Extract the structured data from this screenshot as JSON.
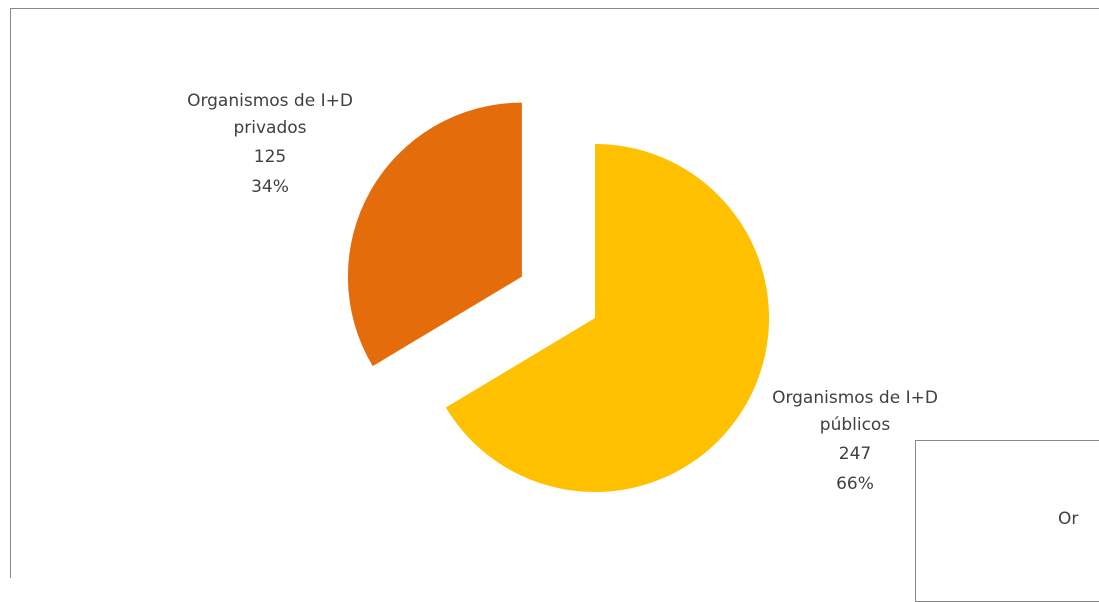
{
  "chart_data": {
    "type": "pie",
    "categories": [
      "Organismos de I+D públicos",
      "Organismos de I+D privados"
    ],
    "values": [
      247,
      125
    ],
    "percent_labels": [
      "66%",
      "34%"
    ],
    "colors": [
      "#ffc000",
      "#e46c0a"
    ]
  },
  "inset_label": "Or"
}
